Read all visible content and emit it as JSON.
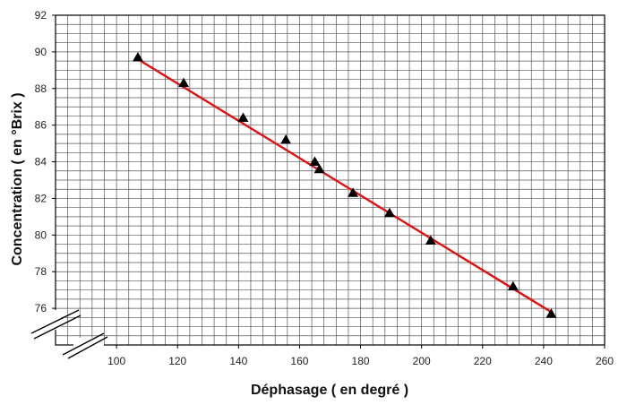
{
  "chart_data": {
    "type": "scatter",
    "xlabel": "Déphasage ( en degré )",
    "ylabel": "Concentration ( en °Brix )",
    "xlim": [
      80,
      260
    ],
    "ylim": [
      74,
      92
    ],
    "x_ticks": [
      100,
      120,
      140,
      160,
      180,
      200,
      220,
      240,
      260
    ],
    "y_ticks": [
      76,
      78,
      80,
      82,
      84,
      86,
      88,
      90,
      92
    ],
    "grid": true,
    "axis_breaks": [
      "x",
      "y"
    ],
    "points": {
      "marker": "triangle",
      "color": "#000000",
      "x": [
        107,
        122,
        141.5,
        155.5,
        165,
        166.5,
        177.5,
        189.5,
        203,
        230,
        242.5
      ],
      "y": [
        89.7,
        88.3,
        86.4,
        85.2,
        84.0,
        83.6,
        82.3,
        81.2,
        79.7,
        77.2,
        75.7
      ]
    },
    "fit_line": {
      "color": "#e01010",
      "x": [
        107,
        242.5
      ],
      "y": [
        89.6,
        75.8
      ]
    }
  }
}
